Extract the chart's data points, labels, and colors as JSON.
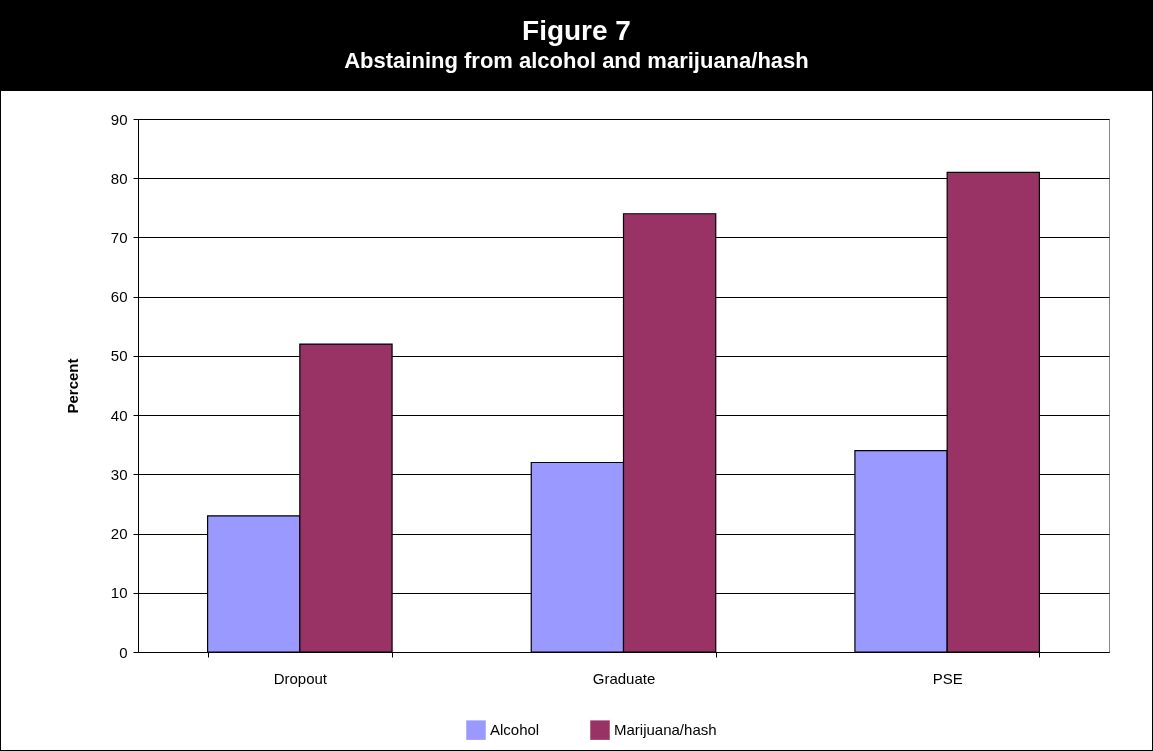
{
  "chart_data": {
    "type": "bar",
    "title": "Figure 7",
    "subtitle": "Abstaining from alcohol and marijuana/hash",
    "ylabel": "Percent",
    "categories": [
      "Dropout",
      "Graduate",
      "PSE"
    ],
    "series": [
      {
        "name": "Alcohol",
        "color": "#9999ff",
        "values": [
          23,
          32,
          34
        ]
      },
      {
        "name": "Marijuana/hash",
        "color": "#993366",
        "values": [
          52,
          74,
          81
        ]
      }
    ],
    "ylim": [
      0,
      90
    ],
    "yticks": [
      0,
      10,
      20,
      30,
      40,
      50,
      60,
      70,
      80,
      90
    ],
    "grid": "y",
    "legend": "bottom"
  }
}
